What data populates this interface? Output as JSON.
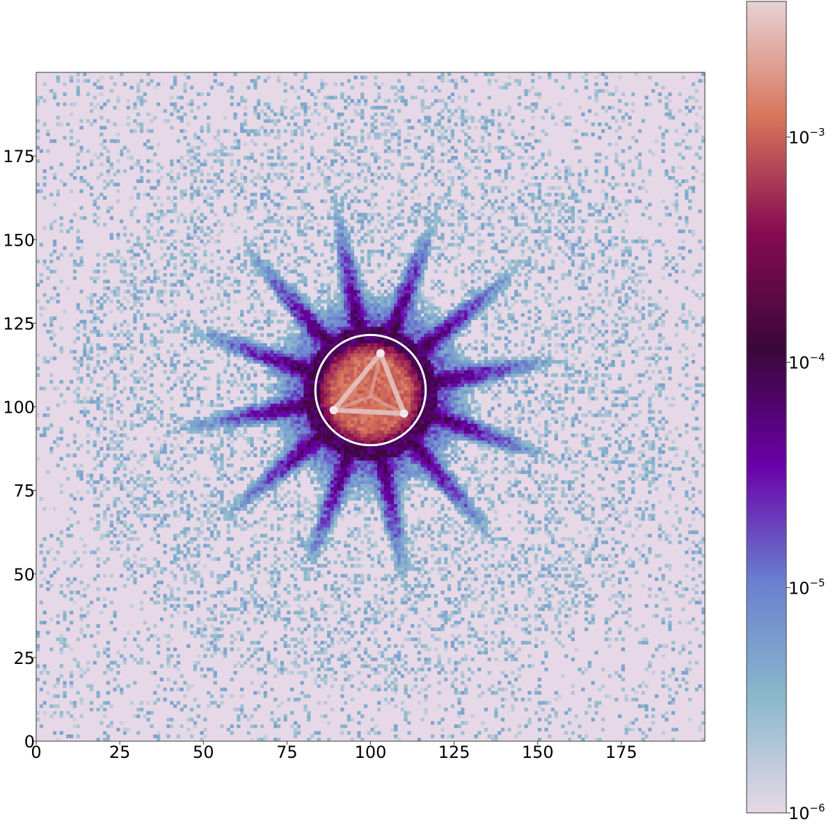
{
  "chart_data": {
    "type": "heatmap",
    "title": "",
    "xlabel": "",
    "ylabel": "",
    "xlim": [
      0,
      200
    ],
    "ylim": [
      0,
      200
    ],
    "x_ticks": [
      "0",
      "25",
      "50",
      "75",
      "100",
      "125",
      "150",
      "175"
    ],
    "y_ticks": [
      "0",
      "25",
      "50",
      "75",
      "100",
      "125",
      "150",
      "175"
    ],
    "grid": false,
    "color_scale": "log",
    "colorbar": {
      "min": 1e-06,
      "max": 0.004,
      "ticks": [
        {
          "value": 1e-06,
          "base": "10",
          "exp": "−6"
        },
        {
          "value": 1e-05,
          "base": "10",
          "exp": "−5"
        },
        {
          "value": 0.0001,
          "base": "10",
          "exp": "−4"
        },
        {
          "value": 0.001,
          "base": "10",
          "exp": "−3"
        }
      ],
      "colormap": [
        "#e6d8e6",
        "#8ab8cc",
        "#6a7fd0",
        "#6a00a8",
        "#3a0838",
        "#860a52",
        "#d7755a",
        "#e7d2d4"
      ]
    },
    "features": {
      "center": [
        100,
        104
      ],
      "bright_core_radius": 14,
      "bright_core_values": "1e-3 to 4e-3",
      "halo_radius": 35,
      "halo_values": "1e-5 to 1e-4",
      "spike_count": 12,
      "background_values": "1e-6 to 1e-5"
    },
    "annotations": [
      {
        "type": "circle",
        "center": [
          100,
          105
        ],
        "radius": 16.5,
        "color": "#ffffff"
      }
    ]
  }
}
